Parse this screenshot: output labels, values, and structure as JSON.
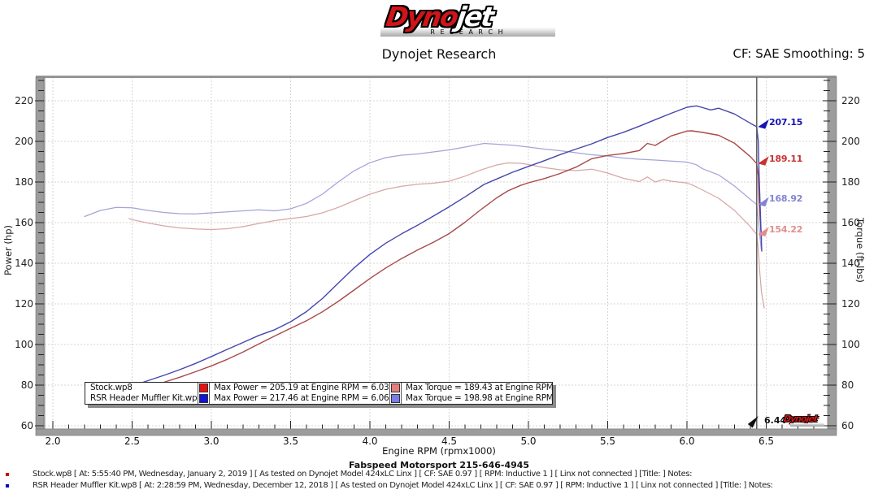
{
  "header": {
    "logo_dyno": "Dyno",
    "logo_jet": "jet",
    "logo_sub": "R E S E A R C H",
    "title": "Dynojet Research",
    "cf_note": "CF: SAE Smoothing: 5"
  },
  "chart_data": {
    "type": "line",
    "xlabel": "Engine RPM (rpmx1000)",
    "ylabel_left": "Power (hp)",
    "ylabel_right": "Torque (ft-lbs)",
    "x_ticks": [
      2.0,
      2.5,
      3.0,
      3.5,
      4.0,
      4.5,
      5.0,
      5.5,
      6.0,
      6.5
    ],
    "y_ticks": [
      60,
      80,
      100,
      120,
      140,
      160,
      180,
      200,
      220
    ],
    "x_range": [
      1.95,
      6.89
    ],
    "y_range": [
      58.4,
      231.6
    ],
    "grid": true,
    "grid_color": "#d8d5d1",
    "series": [
      {
        "id": "stock-torque",
        "run": "Stock.wp8",
        "metric": "torque",
        "color": "#d8a6a6",
        "points": [
          [
            2.48,
            162
          ],
          [
            2.5,
            161.5
          ],
          [
            2.6,
            159.8
          ],
          [
            2.7,
            158.4
          ],
          [
            2.8,
            157.4
          ],
          [
            2.9,
            156.9
          ],
          [
            3,
            156.6
          ],
          [
            3.1,
            157
          ],
          [
            3.2,
            158
          ],
          [
            3.3,
            159.6
          ],
          [
            3.4,
            161
          ],
          [
            3.5,
            162
          ],
          [
            3.6,
            163
          ],
          [
            3.7,
            164.8
          ],
          [
            3.8,
            167.5
          ],
          [
            3.9,
            170.8
          ],
          [
            4,
            174
          ],
          [
            4.1,
            176.4
          ],
          [
            4.2,
            177.9
          ],
          [
            4.3,
            178.9
          ],
          [
            4.4,
            179.4
          ],
          [
            4.5,
            180.4
          ],
          [
            4.6,
            182.9
          ],
          [
            4.7,
            185.9
          ],
          [
            4.8,
            188.4
          ],
          [
            4.87,
            189.4
          ],
          [
            4.95,
            189.2
          ],
          [
            5,
            188.6
          ],
          [
            5.1,
            187.1
          ],
          [
            5.2,
            186
          ],
          [
            5.3,
            185.6
          ],
          [
            5.4,
            186.3
          ],
          [
            5.5,
            184.4
          ],
          [
            5.6,
            181.8
          ],
          [
            5.7,
            180.2
          ],
          [
            5.75,
            182.5
          ],
          [
            5.8,
            180
          ],
          [
            5.85,
            181.2
          ],
          [
            5.9,
            180.4
          ],
          [
            6,
            179.5
          ],
          [
            6.03,
            178.7
          ],
          [
            6.1,
            176
          ],
          [
            6.2,
            172
          ],
          [
            6.3,
            166
          ],
          [
            6.4,
            158
          ],
          [
            6.44,
            154.2
          ],
          [
            6.45,
            147
          ],
          [
            6.46,
            135
          ],
          [
            6.47,
            126
          ],
          [
            6.487,
            118
          ]
        ]
      },
      {
        "id": "rsr-torque",
        "run": "RSR Header Muffler Kit.wp8",
        "metric": "torque",
        "color": "#a4a4d8",
        "points": [
          [
            2.2,
            163
          ],
          [
            2.3,
            166
          ],
          [
            2.4,
            167.5
          ],
          [
            2.5,
            167.3
          ],
          [
            2.6,
            166
          ],
          [
            2.7,
            165
          ],
          [
            2.8,
            164.4
          ],
          [
            2.9,
            164.3
          ],
          [
            3,
            164.8
          ],
          [
            3.1,
            165.3
          ],
          [
            3.2,
            165.8
          ],
          [
            3.3,
            166.3
          ],
          [
            3.4,
            165.8
          ],
          [
            3.5,
            166.8
          ],
          [
            3.6,
            169.5
          ],
          [
            3.7,
            174
          ],
          [
            3.8,
            180
          ],
          [
            3.9,
            185.5
          ],
          [
            4,
            189.5
          ],
          [
            4.1,
            192
          ],
          [
            4.2,
            193.2
          ],
          [
            4.3,
            193.8
          ],
          [
            4.4,
            194.8
          ],
          [
            4.5,
            195.8
          ],
          [
            4.6,
            197.2
          ],
          [
            4.72,
            199
          ],
          [
            4.8,
            198.6
          ],
          [
            4.9,
            198.1
          ],
          [
            5,
            197.2
          ],
          [
            5.1,
            196.2
          ],
          [
            5.2,
            195.4
          ],
          [
            5.3,
            194.4
          ],
          [
            5.4,
            193.4
          ],
          [
            5.5,
            192.8
          ],
          [
            5.6,
            191.8
          ],
          [
            5.7,
            191.2
          ],
          [
            5.8,
            190.8
          ],
          [
            5.9,
            190.3
          ],
          [
            6,
            189.8
          ],
          [
            6.06,
            188.5
          ],
          [
            6.1,
            186.5
          ],
          [
            6.2,
            183.5
          ],
          [
            6.3,
            178
          ],
          [
            6.4,
            171.5
          ],
          [
            6.44,
            168.9
          ],
          [
            6.45,
            162
          ],
          [
            6.46,
            153
          ],
          [
            6.468,
            147
          ]
        ]
      },
      {
        "id": "stock-power",
        "run": "Stock.wp8",
        "metric": "power",
        "color": "#a84a4a",
        "points": [
          [
            2.55,
            78
          ],
          [
            2.6,
            79.1
          ],
          [
            2.7,
            81.4
          ],
          [
            2.8,
            83.9
          ],
          [
            2.9,
            86.6
          ],
          [
            3,
            89.5
          ],
          [
            3.1,
            92.7
          ],
          [
            3.2,
            96.3
          ],
          [
            3.3,
            100.3
          ],
          [
            3.4,
            104.2
          ],
          [
            3.5,
            108
          ],
          [
            3.6,
            111.7
          ],
          [
            3.7,
            116.1
          ],
          [
            3.8,
            121.2
          ],
          [
            3.9,
            126.8
          ],
          [
            4,
            132.5
          ],
          [
            4.1,
            137.7
          ],
          [
            4.2,
            142.3
          ],
          [
            4.3,
            146.5
          ],
          [
            4.4,
            150.3
          ],
          [
            4.5,
            154.6
          ],
          [
            4.6,
            160.2
          ],
          [
            4.7,
            166.4
          ],
          [
            4.8,
            172.2
          ],
          [
            4.87,
            175.6
          ],
          [
            4.95,
            178.3
          ],
          [
            5,
            179.6
          ],
          [
            5.1,
            181.7
          ],
          [
            5.2,
            184.2
          ],
          [
            5.3,
            187.3
          ],
          [
            5.4,
            191.5
          ],
          [
            5.5,
            193.1
          ],
          [
            5.6,
            194
          ],
          [
            5.7,
            195.5
          ],
          [
            5.75,
            199
          ],
          [
            5.8,
            198
          ],
          [
            5.9,
            202.7
          ],
          [
            6,
            205.1
          ],
          [
            6.03,
            205.2
          ],
          [
            6.1,
            204.4
          ],
          [
            6.2,
            203
          ],
          [
            6.3,
            199.1
          ],
          [
            6.4,
            192.5
          ],
          [
            6.44,
            189.1
          ],
          [
            6.45,
            183
          ],
          [
            6.455,
            170
          ],
          [
            6.465,
            158
          ],
          [
            6.47,
            152
          ]
        ]
      },
      {
        "id": "rsr-power",
        "run": "RSR Header Muffler Kit.wp8",
        "metric": "power",
        "color": "#4646ae",
        "points": [
          [
            2.3,
            72.7
          ],
          [
            2.4,
            76.5
          ],
          [
            2.5,
            79.6
          ],
          [
            2.6,
            82.2
          ],
          [
            2.7,
            84.8
          ],
          [
            2.8,
            87.6
          ],
          [
            2.9,
            90.7
          ],
          [
            3,
            94.1
          ],
          [
            3.1,
            97.6
          ],
          [
            3.2,
            101
          ],
          [
            3.3,
            104.5
          ],
          [
            3.4,
            107.3
          ],
          [
            3.5,
            111.2
          ],
          [
            3.6,
            116.2
          ],
          [
            3.7,
            122.6
          ],
          [
            3.8,
            130.2
          ],
          [
            3.9,
            137.7
          ],
          [
            4,
            144.3
          ],
          [
            4.1,
            149.9
          ],
          [
            4.2,
            154.5
          ],
          [
            4.3,
            158.7
          ],
          [
            4.4,
            163.2
          ],
          [
            4.5,
            167.8
          ],
          [
            4.6,
            172.7
          ],
          [
            4.72,
            178.8
          ],
          [
            4.8,
            181.5
          ],
          [
            4.9,
            184.8
          ],
          [
            5,
            187.7
          ],
          [
            5.1,
            190.5
          ],
          [
            5.2,
            193.5
          ],
          [
            5.3,
            196.2
          ],
          [
            5.4,
            198.8
          ],
          [
            5.5,
            201.9
          ],
          [
            5.6,
            204.5
          ],
          [
            5.7,
            207.5
          ],
          [
            5.8,
            210.7
          ],
          [
            5.9,
            213.8
          ],
          [
            6,
            216.8
          ],
          [
            6.06,
            217.5
          ],
          [
            6.1,
            216.6
          ],
          [
            6.15,
            215.5
          ],
          [
            6.2,
            216.3
          ],
          [
            6.3,
            213.5
          ],
          [
            6.4,
            208.9
          ],
          [
            6.44,
            207.2
          ],
          [
            6.45,
            200
          ],
          [
            6.455,
            184
          ],
          [
            6.465,
            160
          ],
          [
            6.472,
            146
          ]
        ]
      }
    ],
    "cursor": {
      "rpm": 6.44,
      "label": "6.44",
      "values": [
        {
          "label": "207.15",
          "value": 207.15,
          "color": "#1414b4"
        },
        {
          "label": "189.11",
          "value": 189.11,
          "color": "#c83232"
        },
        {
          "label": "168.92",
          "value": 168.92,
          "color": "#8484d2"
        },
        {
          "label": "154.22",
          "value": 154.22,
          "color": "#e28e8e"
        }
      ]
    },
    "legend": {
      "rows": [
        {
          "name": "Stock.wp8",
          "power_color": "#e41414",
          "power_label": "Max Power = 205.19 at Engine RPM = 6.03",
          "torque_color": "#e87c7c",
          "torque_label": "Max Torque = 189.43 at Engine RPM = 4.87"
        },
        {
          "name": "RSR Header Muffler Kit.wp8",
          "power_color": "#1414d4",
          "power_label": "Max Power = 217.46 at Engine RPM = 6.06",
          "torque_color": "#7c7ce8",
          "torque_label": "Max Torque = 198.98 at Engine RPM = 4.72"
        }
      ]
    },
    "watermark": "Dynojet"
  },
  "footer": {
    "shop": "Fabspeed Motorsport 215-646-4945",
    "runs": [
      "Stock.wp8 [ At: 5:55:40 PM, Wednesday, January 2, 2019 ] [ As tested on Dynojet Model 424xLC Linx ] [ CF: SAE 0.97 ] [ RPM: Inductive 1 ] [ Linx not connected ] [Title: ]  Notes:",
      "RSR Header Muffler Kit.wp8 [ At: 2:28:59 PM, Wednesday, December 12, 2018 ] [ As tested on Dynojet Model 424xLC Linx ] [ CF: SAE 0.97 ] [ RPM: Inductive 1 ] [ Linx not connected ] [Title: ]  Notes:"
    ],
    "bullet_colors": [
      "#cc0000",
      "#0000cc"
    ]
  }
}
